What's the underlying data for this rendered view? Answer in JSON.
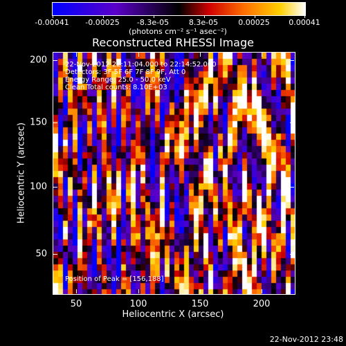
{
  "colorbar": {
    "tick_labels": [
      "-0.00041",
      "-0.00025",
      "-8.3e-05",
      "8.3e-05",
      "0.00025",
      "0.00041"
    ],
    "unit_label": "(photons cm⁻² s⁻¹ asec⁻²)"
  },
  "plot": {
    "title": "Reconstructed RHESSI Image",
    "xlabel": "Heliocentric X (arcsec)",
    "ylabel": "Heliocentric Y (arcsec)",
    "x_ticks": [
      "50",
      "100",
      "150",
      "200"
    ],
    "y_ticks": [
      "50",
      "100",
      "150",
      "200"
    ],
    "overlay": {
      "time": "22-Nov-2012 22:11:04.000 to 22:14:52.000",
      "detectors": "Detectors: 3F 5F 6F 7F 8F 9F, Att 0",
      "energy": "Energy Range: 25.0 - 50.0 keV",
      "clean": "Clean    Total counts: 8.10E+03",
      "peak": "Position of Peak = [156,188]"
    }
  },
  "timestamp": "22-Nov-2012 23:48"
}
